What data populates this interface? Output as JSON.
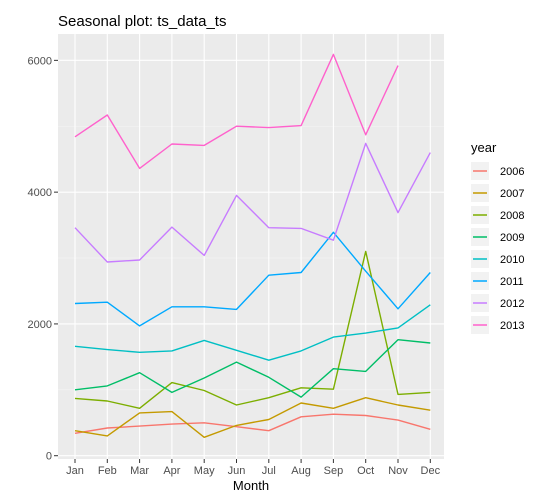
{
  "chart_data": {
    "type": "line",
    "title": "Seasonal plot: ts_data_ts",
    "xlabel": "Month",
    "ylabel": "",
    "categories": [
      "Jan",
      "Feb",
      "Mar",
      "Apr",
      "May",
      "Jun",
      "Jul",
      "Aug",
      "Sep",
      "Oct",
      "Nov",
      "Dec"
    ],
    "y_ticks": [
      0,
      2000,
      4000,
      6000
    ],
    "y_tick_labels": [
      "0",
      "2000",
      "4000",
      "6000"
    ],
    "ylim": [
      -50,
      6400
    ],
    "grid": true,
    "legend_title": "year",
    "legend_position": "right",
    "series": [
      {
        "name": "2006",
        "color": "#F8766D",
        "values": [
          340,
          420,
          450,
          480,
          500,
          440,
          380,
          590,
          630,
          610,
          540,
          400
        ]
      },
      {
        "name": "2007",
        "color": "#C49A00",
        "values": [
          380,
          300,
          650,
          670,
          280,
          460,
          550,
          800,
          720,
          880,
          770,
          690
        ]
      },
      {
        "name": "2008",
        "color": "#7CAE00",
        "values": [
          870,
          830,
          720,
          1110,
          990,
          770,
          880,
          1030,
          1010,
          3100,
          930,
          960
        ]
      },
      {
        "name": "2009",
        "color": "#00BE67",
        "values": [
          1000,
          1060,
          1260,
          960,
          1180,
          1420,
          1190,
          890,
          1320,
          1280,
          1760,
          1710
        ]
      },
      {
        "name": "2010",
        "color": "#00BFC4",
        "values": [
          1660,
          1610,
          1570,
          1590,
          1750,
          1600,
          1450,
          1590,
          1800,
          1860,
          1940,
          2290
        ]
      },
      {
        "name": "2011",
        "color": "#00A9FF",
        "values": [
          2310,
          2330,
          1970,
          2260,
          2260,
          2220,
          2740,
          2780,
          3390,
          2800,
          2230,
          2780
        ]
      },
      {
        "name": "2012",
        "color": "#C77CFF",
        "values": [
          3460,
          2940,
          2970,
          3470,
          3040,
          3950,
          3460,
          3450,
          3270,
          4740,
          3690,
          4600
        ]
      },
      {
        "name": "2013",
        "color": "#FF61CC",
        "values": [
          4840,
          5170,
          4360,
          4730,
          4710,
          5000,
          4980,
          5010,
          6090,
          4870,
          5920,
          null
        ]
      }
    ]
  }
}
